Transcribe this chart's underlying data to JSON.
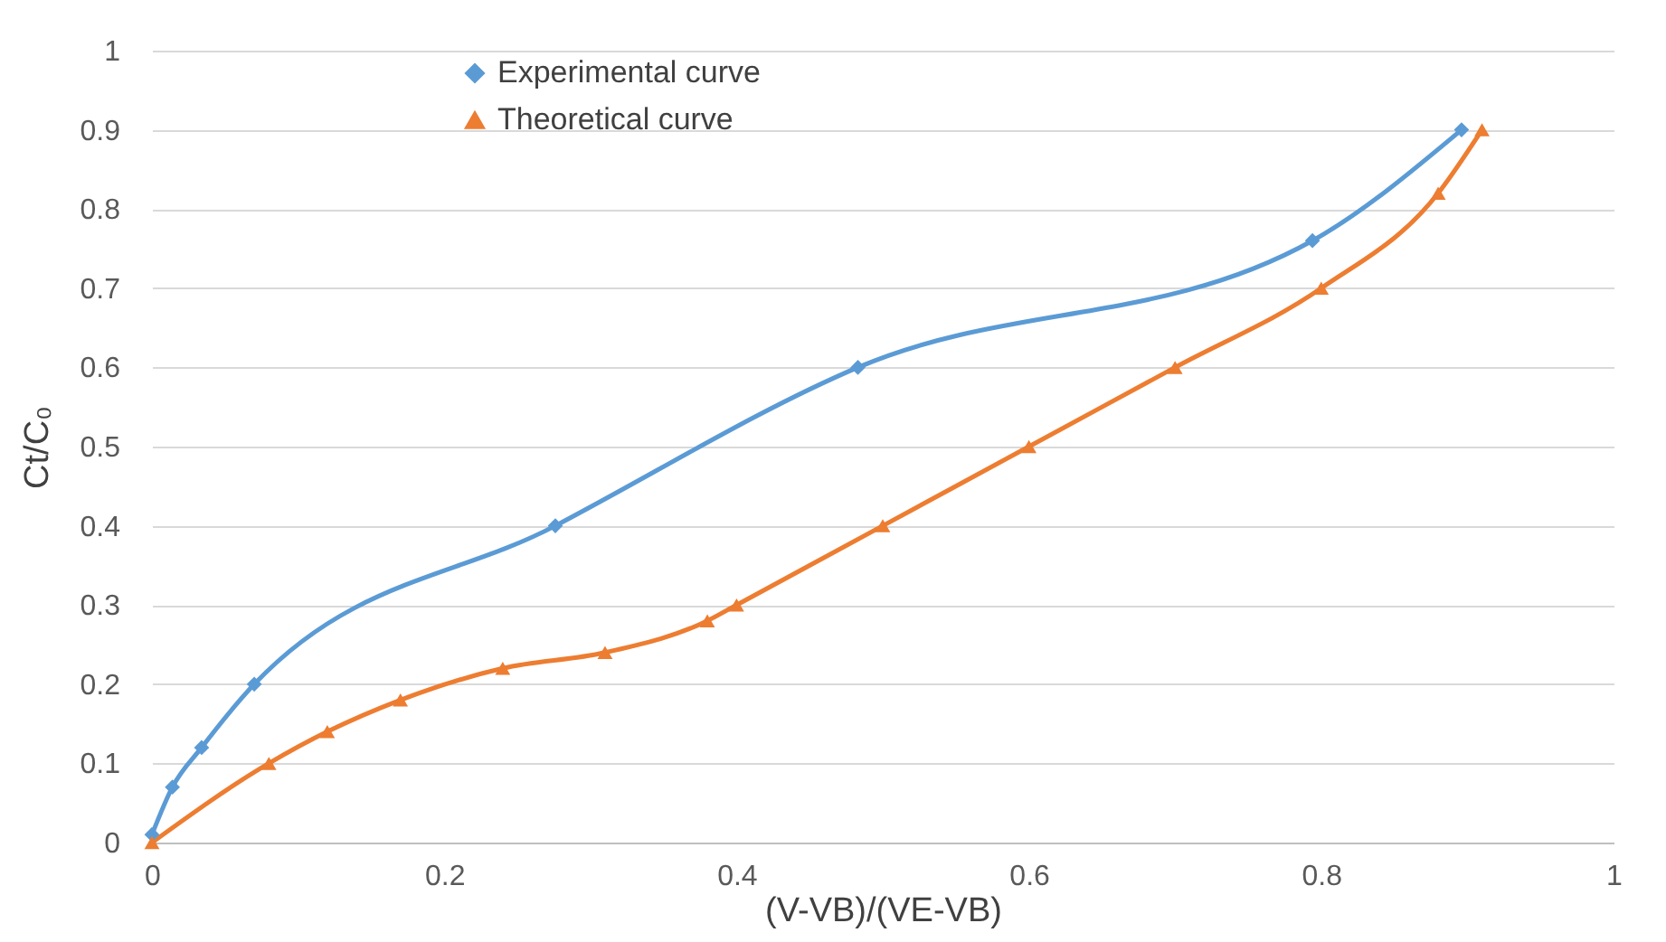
{
  "chart_data": {
    "type": "line",
    "xlabel": "(V-VB)/(VE-VB)",
    "ylabel": "Ct/C₀",
    "xlim": [
      0,
      1
    ],
    "xticks": [
      0,
      0.2,
      0.4,
      0.6,
      0.8,
      1
    ],
    "ylim": [
      0,
      1
    ],
    "yticks": [
      0,
      0.1,
      0.2,
      0.3,
      0.4,
      0.5,
      0.6,
      0.7,
      0.8,
      0.9,
      1
    ],
    "grid": "y",
    "legend": "top",
    "line_style": "solid",
    "series": [
      {
        "name": "Experimental curve",
        "color": "#5b9bd5",
        "marker": "diamond",
        "x": [
          0,
          0.014,
          0.034,
          0.07,
          0.276,
          0.483,
          0.794,
          0.896
        ],
        "values": [
          0.01,
          0.07,
          0.12,
          0.2,
          0.4,
          0.6,
          0.76,
          0.9
        ]
      },
      {
        "name": "Theoretical curve",
        "color": "#ed7d31",
        "marker": "triangle",
        "x": [
          0,
          0.08,
          0.12,
          0.17,
          0.24,
          0.31,
          0.38,
          0.4,
          0.5,
          0.6,
          0.7,
          0.8,
          0.88,
          0.91
        ],
        "values": [
          0,
          0.1,
          0.14,
          0.18,
          0.22,
          0.24,
          0.28,
          0.3,
          0.4,
          0.5,
          0.6,
          0.7,
          0.82,
          0.9
        ]
      }
    ]
  }
}
